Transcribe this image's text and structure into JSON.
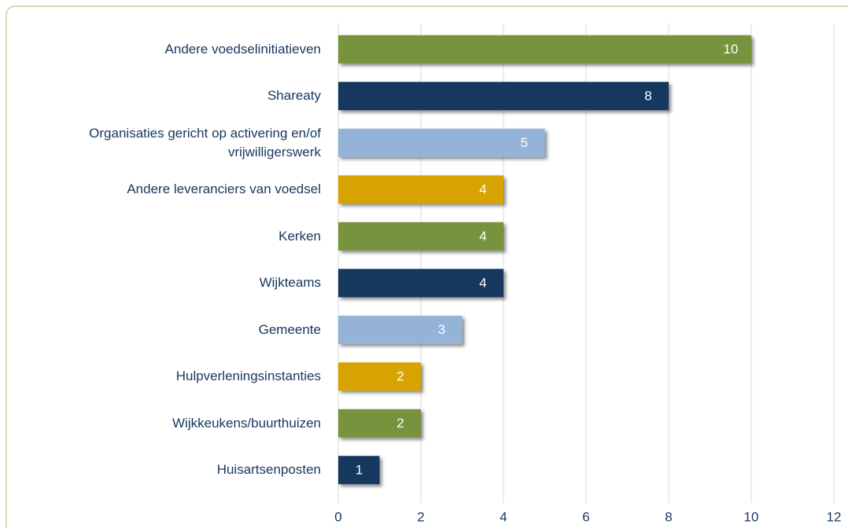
{
  "chart_data": {
    "type": "bar",
    "orientation": "horizontal",
    "categories": [
      "Andere voedselinitiatieven",
      "Shareaty",
      "Organisaties gericht op activering en/of vrijwilligerswerk",
      "Andere leveranciers van voedsel",
      "Kerken",
      "Wijkteams",
      "Gemeente",
      "Hulpverleningsinstanties",
      "Wijkkeukens/buurthuizen",
      "Huisartsenposten"
    ],
    "values": [
      10,
      8,
      5,
      4,
      4,
      4,
      3,
      2,
      2,
      1
    ],
    "colors": [
      "#77933c",
      "#17375e",
      "#95b3d7",
      "#d6a300",
      "#77933c",
      "#17375e",
      "#95b3d7",
      "#d6a300",
      "#77933c",
      "#17375e"
    ],
    "xlim": [
      0,
      12
    ],
    "xticks": [
      0,
      2,
      4,
      6,
      8,
      10,
      12
    ],
    "grid": true
  }
}
